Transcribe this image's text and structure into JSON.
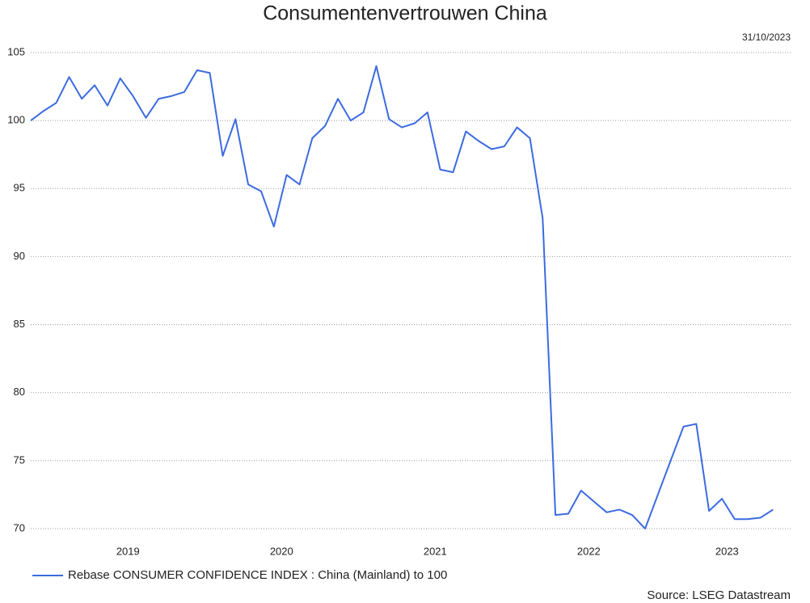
{
  "chart_data": {
    "type": "line",
    "title": "Consumentenvertrouwen China",
    "subtitle": "31/10/2023",
    "source": "Source: LSEG Datastream",
    "x": [
      2018.917,
      2019.0,
      2019.083,
      2019.167,
      2019.25,
      2019.333,
      2019.417,
      2019.5,
      2019.583,
      2019.667,
      2019.75,
      2019.833,
      2019.917,
      2020.0,
      2020.083,
      2020.167,
      2020.25,
      2020.333,
      2020.417,
      2020.5,
      2020.583,
      2020.667,
      2020.75,
      2020.833,
      2020.917,
      2021.0,
      2021.083,
      2021.167,
      2021.25,
      2021.333,
      2021.417,
      2021.5,
      2021.583,
      2021.667,
      2021.75,
      2021.833,
      2021.917,
      2022.0,
      2022.083,
      2022.167,
      2022.25,
      2022.333,
      2022.417,
      2022.5,
      2022.583,
      2022.667,
      2022.75,
      2022.833,
      2022.917,
      2023.0,
      2023.083,
      2023.167,
      2023.25,
      2023.333,
      2023.417,
      2023.5,
      2023.583,
      2023.667,
      2023.75
    ],
    "series": [
      {
        "name": "Rebase CONSUMER CONFIDENCE INDEX : China (Mainland) to 100",
        "color": "#3c6be0",
        "values": [
          100,
          100.7,
          101.3,
          103.2,
          101.6,
          102.6,
          101.1,
          103.1,
          101.8,
          100.2,
          101.6,
          101.8,
          102.1,
          103.7,
          103.5,
          97.4,
          100.1,
          95.3,
          94.8,
          92.2,
          96.0,
          95.3,
          98.7,
          99.6,
          101.6,
          100.0,
          100.6,
          104.0,
          100.1,
          99.5,
          99.8,
          100.6,
          96.4,
          96.2,
          99.2,
          98.5,
          97.9,
          98.1,
          99.5,
          98.7,
          92.8,
          71.0,
          71.1,
          72.8,
          72.0,
          71.2,
          71.4,
          71.0,
          70.0,
          72.5,
          75.0,
          77.5,
          77.7,
          71.3,
          72.2,
          70.7,
          70.7,
          70.8,
          71.4
        ]
      }
    ],
    "xlim": [
      2018.917,
      2023.864
    ],
    "xticks": [
      {
        "value": 2019.55,
        "label": "2019"
      },
      {
        "value": 2020.55,
        "label": "2020"
      },
      {
        "value": 2021.55,
        "label": "2021"
      },
      {
        "value": 2022.55,
        "label": "2022"
      },
      {
        "value": 2023.45,
        "label": "2023"
      }
    ],
    "ylim": [
      70,
      105
    ],
    "yticks": [
      70,
      75,
      80,
      85,
      90,
      95,
      100,
      105
    ],
    "grid": true,
    "legend": "bottom"
  }
}
